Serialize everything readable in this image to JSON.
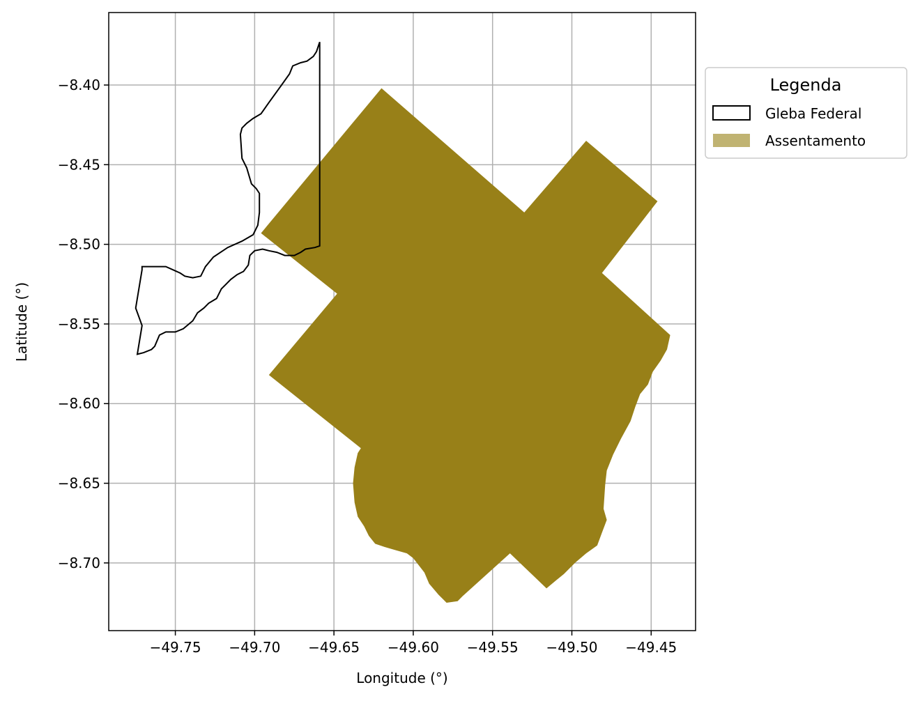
{
  "map": {
    "xlabel": "Longitude (°)",
    "ylabel": "Latitude (°)",
    "grid": true,
    "xlim": [
      -49.792,
      -49.422
    ],
    "ylim": [
      -8.7425,
      -8.3545
    ],
    "x_ticks": [
      -49.75,
      -49.7,
      -49.65,
      -49.6,
      -49.55,
      -49.5,
      -49.45
    ],
    "x_tick_labels": [
      "−49.75",
      "−49.70",
      "−49.65",
      "−49.60",
      "−49.55",
      "−49.50",
      "−49.45"
    ],
    "y_ticks": [
      -8.4,
      -8.45,
      -8.5,
      -8.55,
      -8.6,
      -8.65,
      -8.7
    ],
    "y_tick_labels": [
      "−8.40",
      "−8.45",
      "−8.50",
      "−8.55",
      "−8.60",
      "−8.65",
      "−8.70"
    ],
    "legend": {
      "title": "Legenda",
      "placement": "outside-right-top",
      "items": [
        {
          "label": "Gleba Federal",
          "style": "outline",
          "color": "#000000"
        },
        {
          "label": "Assentamento",
          "style": "fill",
          "color": "#c0b372"
        }
      ]
    },
    "colors": {
      "assentamento_fill": "#988018",
      "gleba_edge": "#000000",
      "grid": "#b0b0b0"
    },
    "layers": {
      "gleba_federal": [
        [
          -49.659,
          -8.373
        ],
        [
          -49.659,
          -8.501
        ],
        [
          -49.662,
          -8.502
        ],
        [
          -49.668,
          -8.503
        ],
        [
          -49.671,
          -8.505
        ],
        [
          -49.675,
          -8.507
        ],
        [
          -49.681,
          -8.507
        ],
        [
          -49.686,
          -8.505
        ],
        [
          -49.691,
          -8.504
        ],
        [
          -49.695,
          -8.503
        ],
        [
          -49.7,
          -8.504
        ],
        [
          -49.703,
          -8.507
        ],
        [
          -49.704,
          -8.513
        ],
        [
          -49.707,
          -8.517
        ],
        [
          -49.711,
          -8.519
        ],
        [
          -49.715,
          -8.522
        ],
        [
          -49.718,
          -8.525
        ],
        [
          -49.721,
          -8.528
        ],
        [
          -49.724,
          -8.534
        ],
        [
          -49.729,
          -8.537
        ],
        [
          -49.732,
          -8.54
        ],
        [
          -49.736,
          -8.543
        ],
        [
          -49.739,
          -8.548
        ],
        [
          -49.745,
          -8.553
        ],
        [
          -49.75,
          -8.555
        ],
        [
          -49.756,
          -8.555
        ],
        [
          -49.76,
          -8.557
        ],
        [
          -49.763,
          -8.564
        ],
        [
          -49.765,
          -8.566
        ],
        [
          -49.77,
          -8.568
        ],
        [
          -49.774,
          -8.569
        ],
        [
          -49.771,
          -8.551
        ],
        [
          -49.775,
          -8.54
        ],
        [
          -49.771,
          -8.516
        ],
        [
          -49.771,
          -8.514
        ],
        [
          -49.756,
          -8.514
        ],
        [
          -49.747,
          -8.518
        ],
        [
          -49.744,
          -8.52
        ],
        [
          -49.739,
          -8.521
        ],
        [
          -49.734,
          -8.52
        ],
        [
          -49.731,
          -8.514
        ],
        [
          -49.726,
          -8.508
        ],
        [
          -49.717,
          -8.502
        ],
        [
          -49.708,
          -8.498
        ],
        [
          -49.701,
          -8.494
        ],
        [
          -49.698,
          -8.488
        ],
        [
          -49.697,
          -8.48
        ],
        [
          -49.697,
          -8.468
        ],
        [
          -49.699,
          -8.465
        ],
        [
          -49.702,
          -8.462
        ],
        [
          -49.705,
          -8.452
        ],
        [
          -49.708,
          -8.446
        ],
        [
          -49.709,
          -8.431
        ],
        [
          -49.708,
          -8.427
        ],
        [
          -49.705,
          -8.424
        ],
        [
          -49.701,
          -8.421
        ],
        [
          -49.696,
          -8.418
        ],
        [
          -49.691,
          -8.411
        ],
        [
          -49.683,
          -8.4
        ],
        [
          -49.678,
          -8.393
        ],
        [
          -49.676,
          -8.388
        ],
        [
          -49.671,
          -8.386
        ],
        [
          -49.667,
          -8.385
        ],
        [
          -49.663,
          -8.382
        ],
        [
          -49.661,
          -8.379
        ],
        [
          -49.659,
          -8.373
        ]
      ],
      "assentamento": [
        [
          -49.62,
          -8.402
        ],
        [
          -49.53,
          -8.48
        ],
        [
          -49.491,
          -8.435
        ],
        [
          -49.446,
          -8.473
        ],
        [
          -49.481,
          -8.518
        ],
        [
          -49.438,
          -8.557
        ],
        [
          -49.44,
          -8.566
        ],
        [
          -49.444,
          -8.573
        ],
        [
          -49.449,
          -8.58
        ],
        [
          -49.452,
          -8.588
        ],
        [
          -49.457,
          -8.594
        ],
        [
          -49.46,
          -8.602
        ],
        [
          -49.463,
          -8.611
        ],
        [
          -49.469,
          -8.622
        ],
        [
          -49.474,
          -8.632
        ],
        [
          -49.478,
          -8.642
        ],
        [
          -49.479,
          -8.651
        ],
        [
          -49.48,
          -8.666
        ],
        [
          -49.478,
          -8.673
        ],
        [
          -49.481,
          -8.681
        ],
        [
          -49.484,
          -8.689
        ],
        [
          -49.491,
          -8.694
        ],
        [
          -49.498,
          -8.7
        ],
        [
          -49.505,
          -8.707
        ],
        [
          -49.51,
          -8.711
        ],
        [
          -49.516,
          -8.716
        ],
        [
          -49.539,
          -8.694
        ],
        [
          -49.569,
          -8.721
        ],
        [
          -49.572,
          -8.724
        ],
        [
          -49.579,
          -8.725
        ],
        [
          -49.584,
          -8.72
        ],
        [
          -49.59,
          -8.713
        ],
        [
          -49.593,
          -8.706
        ],
        [
          -49.6,
          -8.697
        ],
        [
          -49.604,
          -8.694
        ],
        [
          -49.611,
          -8.692
        ],
        [
          -49.618,
          -8.69
        ],
        [
          -49.624,
          -8.688
        ],
        [
          -49.628,
          -8.683
        ],
        [
          -49.631,
          -8.677
        ],
        [
          -49.635,
          -8.671
        ],
        [
          -49.637,
          -8.662
        ],
        [
          -49.638,
          -8.65
        ],
        [
          -49.637,
          -8.64
        ],
        [
          -49.635,
          -8.631
        ],
        [
          -49.633,
          -8.628
        ],
        [
          -49.691,
          -8.582
        ],
        [
          -49.648,
          -8.531
        ],
        [
          -49.696,
          -8.493
        ],
        [
          -49.62,
          -8.402
        ]
      ]
    }
  }
}
